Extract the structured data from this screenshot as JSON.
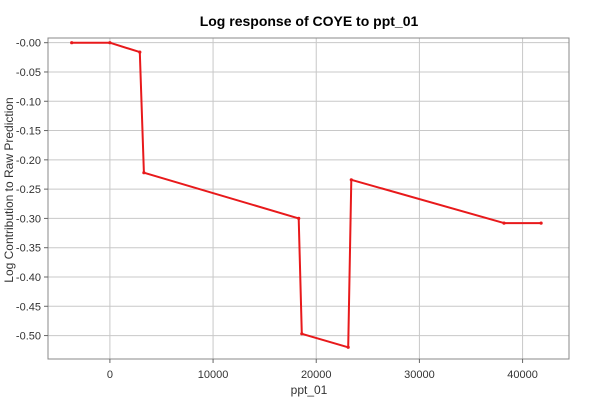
{
  "chart_data": {
    "type": "line",
    "title": "Log response of COYE to ppt_01",
    "xlabel": "ppt_01",
    "ylabel": "Log Contribution to Raw Prediction",
    "xlim": [
      -6000,
      44500
    ],
    "ylim": [
      -0.54,
      0.008
    ],
    "x_ticks": [
      0,
      10000,
      20000,
      30000,
      40000
    ],
    "x_tick_labels": [
      "0",
      "10000",
      "20000",
      "30000",
      "40000"
    ],
    "y_ticks": [
      0,
      -0.05,
      -0.1,
      -0.15,
      -0.2,
      -0.25,
      -0.3,
      -0.35,
      -0.4,
      -0.45,
      -0.5
    ],
    "y_tick_labels": [
      "-0.00",
      "-0.05",
      "-0.10",
      "-0.15",
      "-0.20",
      "-0.25",
      "-0.30",
      "-0.35",
      "-0.40",
      "-0.45",
      "-0.50"
    ],
    "grid": true,
    "series": [
      {
        "color": "#e8191b",
        "x": [
          -3700,
          0,
          2900,
          3300,
          18300,
          18600,
          23100,
          23400,
          38200,
          41800
        ],
        "y": [
          0,
          0,
          -0.016,
          -0.222,
          -0.3,
          -0.497,
          -0.52,
          -0.234,
          -0.308,
          -0.308
        ]
      }
    ]
  }
}
